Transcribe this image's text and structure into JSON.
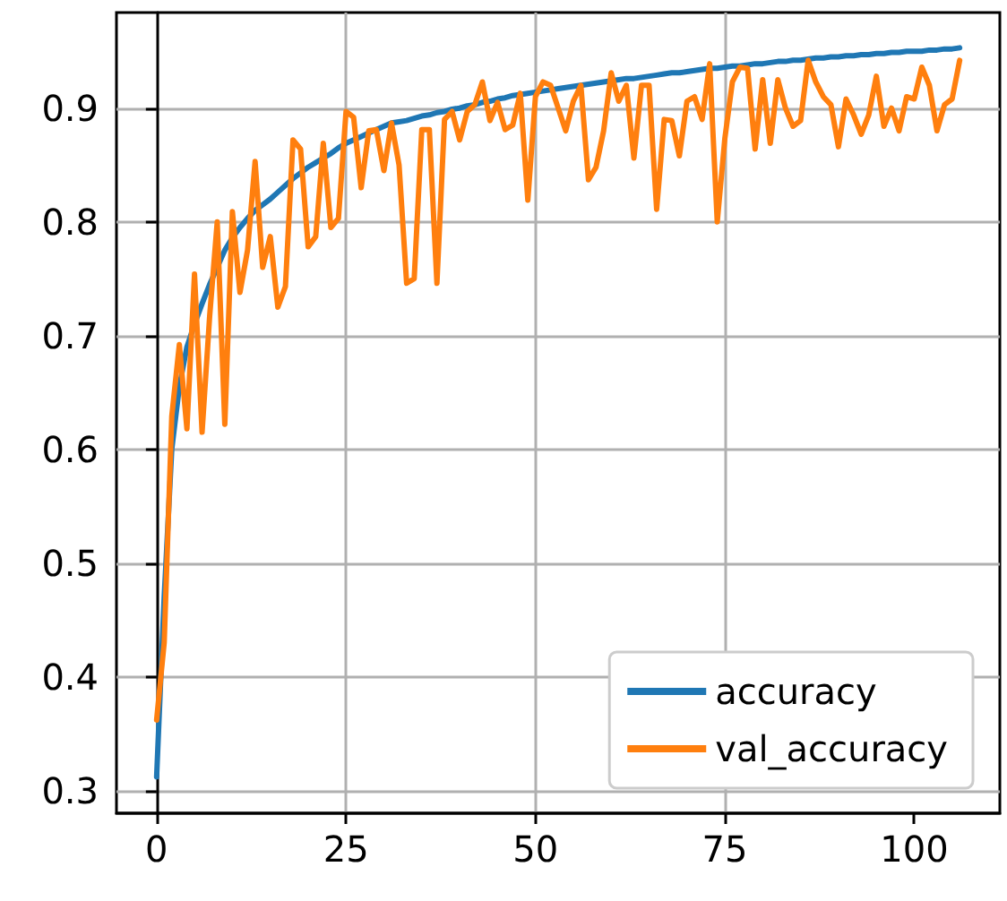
{
  "chart_data": {
    "type": "line",
    "x": [
      0,
      1,
      2,
      3,
      4,
      5,
      6,
      7,
      8,
      9,
      10,
      11,
      12,
      13,
      14,
      15,
      16,
      17,
      18,
      19,
      20,
      21,
      22,
      23,
      24,
      25,
      26,
      27,
      28,
      29,
      30,
      31,
      32,
      33,
      34,
      35,
      36,
      37,
      38,
      39,
      40,
      41,
      42,
      43,
      44,
      45,
      46,
      47,
      48,
      49,
      50,
      51,
      52,
      53,
      54,
      55,
      56,
      57,
      58,
      59,
      60,
      61,
      62,
      63,
      64,
      65,
      66,
      67,
      68,
      69,
      70,
      71,
      72,
      73,
      74,
      75,
      76,
      77,
      78,
      79,
      80,
      81,
      82,
      83,
      84,
      85,
      86,
      87,
      88,
      89,
      90,
      91,
      92,
      93,
      94,
      95,
      96,
      97,
      98,
      99,
      100,
      101,
      102,
      103,
      104,
      105,
      106
    ],
    "series": [
      {
        "name": "accuracy",
        "color": "#1f77b4",
        "values": [
          0.312,
          0.47,
          0.6,
          0.655,
          0.69,
          0.71,
          0.728,
          0.745,
          0.76,
          0.775,
          0.786,
          0.795,
          0.803,
          0.81,
          0.815,
          0.82,
          0.826,
          0.832,
          0.838,
          0.843,
          0.848,
          0.852,
          0.856,
          0.86,
          0.865,
          0.869,
          0.872,
          0.875,
          0.878,
          0.881,
          0.884,
          0.887,
          0.888,
          0.889,
          0.891,
          0.893,
          0.894,
          0.896,
          0.897,
          0.899,
          0.9,
          0.902,
          0.903,
          0.905,
          0.906,
          0.908,
          0.909,
          0.911,
          0.912,
          0.913,
          0.914,
          0.915,
          0.916,
          0.917,
          0.918,
          0.919,
          0.92,
          0.921,
          0.922,
          0.923,
          0.924,
          0.925,
          0.926,
          0.926,
          0.927,
          0.928,
          0.929,
          0.93,
          0.931,
          0.931,
          0.932,
          0.933,
          0.934,
          0.935,
          0.935,
          0.936,
          0.937,
          0.937,
          0.938,
          0.939,
          0.939,
          0.94,
          0.941,
          0.941,
          0.942,
          0.942,
          0.943,
          0.944,
          0.944,
          0.945,
          0.945,
          0.946,
          0.946,
          0.947,
          0.947,
          0.948,
          0.948,
          0.949,
          0.949,
          0.95,
          0.95,
          0.95,
          0.951,
          0.951,
          0.952,
          0.952,
          0.953
        ]
      },
      {
        "name": "val_accuracy",
        "color": "#ff7f0e",
        "values": [
          0.362,
          0.43,
          0.629,
          0.692,
          0.618,
          0.754,
          0.615,
          0.717,
          0.8,
          0.622,
          0.809,
          0.738,
          0.775,
          0.853,
          0.76,
          0.787,
          0.725,
          0.743,
          0.872,
          0.864,
          0.778,
          0.787,
          0.869,
          0.795,
          0.803,
          0.897,
          0.892,
          0.83,
          0.88,
          0.881,
          0.845,
          0.887,
          0.85,
          0.746,
          0.75,
          0.881,
          0.881,
          0.746,
          0.89,
          0.897,
          0.872,
          0.897,
          0.903,
          0.923,
          0.889,
          0.905,
          0.881,
          0.885,
          0.913,
          0.819,
          0.91,
          0.923,
          0.92,
          0.9,
          0.88,
          0.906,
          0.92,
          0.837,
          0.848,
          0.88,
          0.931,
          0.906,
          0.92,
          0.856,
          0.92,
          0.92,
          0.811,
          0.89,
          0.889,
          0.858,
          0.906,
          0.91,
          0.89,
          0.939,
          0.8,
          0.873,
          0.923,
          0.936,
          0.935,
          0.864,
          0.925,
          0.869,
          0.925,
          0.9,
          0.884,
          0.889,
          0.942,
          0.923,
          0.91,
          0.903,
          0.866,
          0.908,
          0.894,
          0.877,
          0.894,
          0.928,
          0.884,
          0.9,
          0.88,
          0.91,
          0.908,
          0.936,
          0.92,
          0.88,
          0.903,
          0.908,
          0.942
        ]
      }
    ],
    "xlim": [
      -5.3,
      111.3
    ],
    "xticks": [
      0,
      25,
      50,
      75,
      100
    ],
    "ylim": [
      0.28,
      0.984
    ],
    "yticks": [
      0.3,
      0.4,
      0.5,
      0.6,
      0.7,
      0.8,
      0.9
    ],
    "grid": true,
    "legend": "bottom right",
    "marker": "none",
    "line_style": "solid"
  }
}
